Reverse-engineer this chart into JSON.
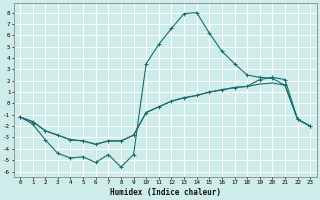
{
  "xlabel": "Humidex (Indice chaleur)",
  "bg_color": "#ceecea",
  "grid_color": "#ffffff",
  "line_color": "#1a6b6b",
  "xlim": [
    -0.5,
    23.5
  ],
  "ylim": [
    -6.5,
    8.8
  ],
  "yticks": [
    8,
    7,
    6,
    5,
    4,
    3,
    2,
    1,
    0,
    -1,
    -2,
    -3,
    -4,
    -5,
    -6
  ],
  "xticks": [
    0,
    1,
    2,
    3,
    4,
    5,
    6,
    7,
    8,
    9,
    10,
    11,
    12,
    13,
    14,
    15,
    16,
    17,
    18,
    19,
    20,
    21,
    22,
    23
  ],
  "line1_x": [
    0,
    1,
    2,
    3,
    4,
    5,
    6,
    7,
    8,
    9,
    10,
    11,
    12,
    13,
    14,
    15,
    16,
    17,
    18,
    19,
    20,
    21,
    22,
    23
  ],
  "line1_y": [
    -1.2,
    -1.8,
    -3.2,
    -4.4,
    -4.8,
    -4.7,
    -5.2,
    -4.5,
    -5.6,
    -4.5,
    3.5,
    5.2,
    6.6,
    7.9,
    8.0,
    6.2,
    4.6,
    3.5,
    2.5,
    2.3,
    2.2,
    1.6,
    -1.4,
    -2.0
  ],
  "line2_x": [
    0,
    1,
    2,
    3,
    4,
    5,
    6,
    7,
    8,
    9,
    10,
    11,
    12,
    13,
    14,
    15,
    16,
    17,
    18,
    19,
    20,
    21,
    22,
    23
  ],
  "line2_y": [
    -1.2,
    -1.6,
    -2.4,
    -2.8,
    -3.2,
    -3.3,
    -3.6,
    -3.3,
    -3.3,
    -2.8,
    -0.8,
    -0.3,
    0.2,
    0.5,
    0.7,
    1.0,
    1.2,
    1.4,
    1.5,
    2.1,
    2.3,
    2.1,
    -1.4,
    -2.0
  ],
  "line3_x": [
    0,
    1,
    2,
    3,
    4,
    5,
    6,
    7,
    8,
    9,
    10,
    11,
    12,
    13,
    14,
    15,
    16,
    17,
    18,
    19,
    20,
    21,
    22,
    23
  ],
  "line3_y": [
    -1.2,
    -1.6,
    -2.4,
    -2.8,
    -3.2,
    -3.3,
    -3.6,
    -3.3,
    -3.3,
    -2.8,
    -0.8,
    -0.3,
    0.2,
    0.5,
    0.7,
    1.0,
    1.2,
    1.4,
    1.5,
    1.7,
    1.8,
    1.6,
    -1.4,
    -2.0
  ]
}
